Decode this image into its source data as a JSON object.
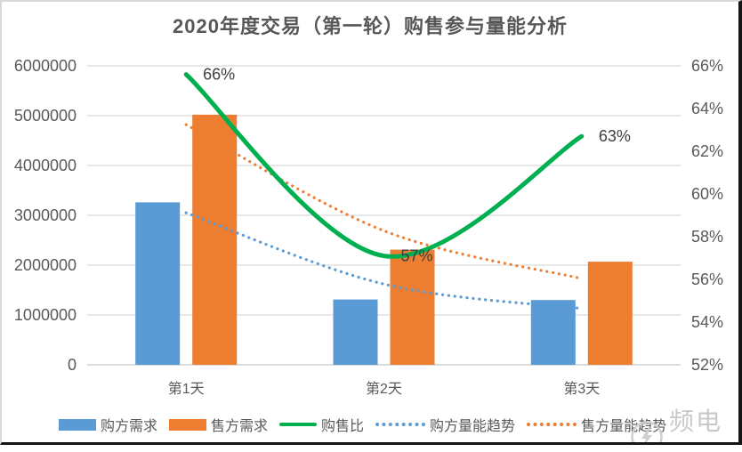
{
  "title": "2020年度交易（第一轮）购售参与量能分析",
  "watermark": {
    "text": "频电汇",
    "icon": "lightning-circle-icon"
  },
  "chart_data": {
    "type": "combo-bar-line",
    "categories": [
      "第1天",
      "第2天",
      "第3天"
    ],
    "series": [
      {
        "name": "购方需求",
        "kind": "bar",
        "axis": "left",
        "color": "#5B9BD5",
        "values": [
          3260000,
          1310000,
          1300000
        ]
      },
      {
        "name": "售方需求",
        "kind": "bar",
        "axis": "left",
        "color": "#ED7D31",
        "values": [
          5020000,
          2310000,
          2070000
        ]
      },
      {
        "name": "购售比",
        "kind": "line-smooth",
        "axis": "right",
        "color": "#00B050",
        "values": [
          65.6,
          57.1,
          62.7
        ],
        "point_labels": [
          "66%",
          "57%",
          "63%"
        ]
      },
      {
        "name": "购方量能趋势",
        "kind": "line-dotted",
        "axis": "left",
        "color": "#5B9BD5",
        "values": [
          3050000,
          1620000,
          1130000
        ]
      },
      {
        "name": "售方量能趋势",
        "kind": "line-dotted",
        "axis": "left",
        "color": "#ED7D31",
        "values": [
          4820000,
          2690000,
          1730000
        ]
      }
    ],
    "left_axis": {
      "min": 0,
      "max": 6000000,
      "tick_labels": [
        "0",
        "1000000",
        "2000000",
        "3000000",
        "4000000",
        "5000000",
        "6000000"
      ]
    },
    "right_axis": {
      "min": 52,
      "max": 66,
      "tick_labels": [
        "52%",
        "54%",
        "56%",
        "58%",
        "60%",
        "62%",
        "64%",
        "66%"
      ]
    },
    "grid": "horizontal",
    "legend_position": "bottom",
    "grid_color": "#D9D9D9",
    "axis_text_color": "#595959",
    "data_label_color": "#3F3F3F"
  }
}
